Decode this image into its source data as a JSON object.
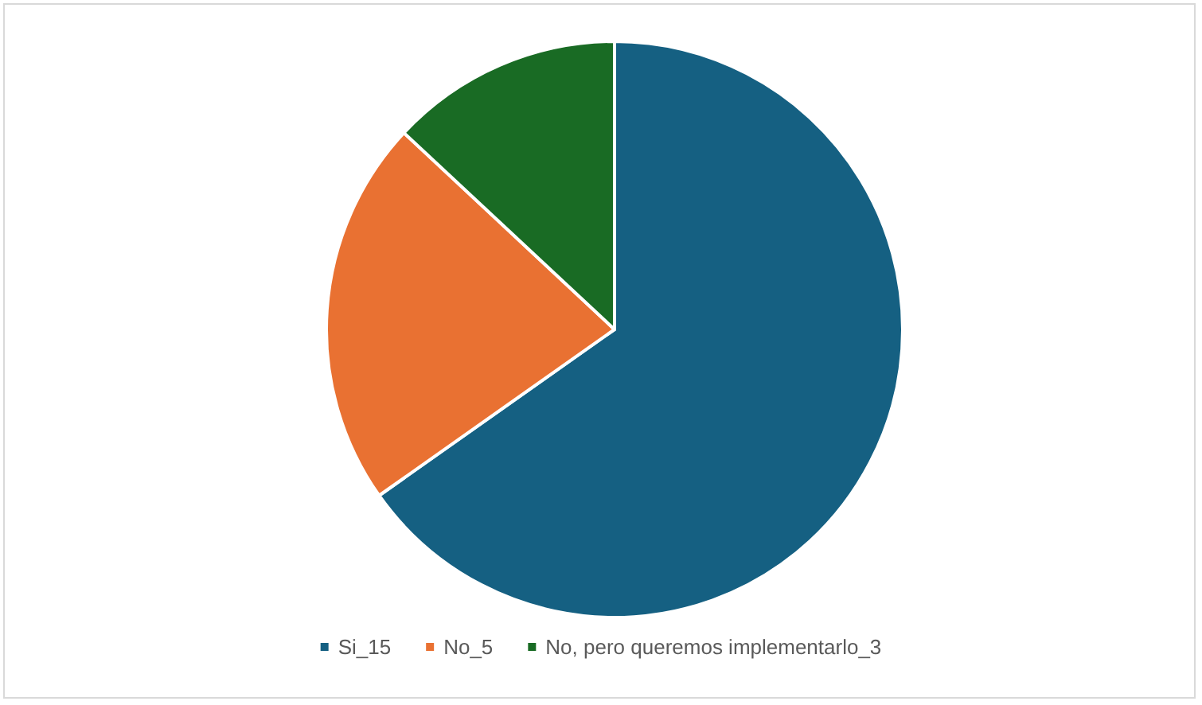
{
  "chart_data": {
    "type": "pie",
    "categories": [
      "Si_15",
      "No_5",
      "No, pero queremos implementarlo_3"
    ],
    "values": [
      15,
      5,
      3
    ],
    "colors": [
      "#156082",
      "#e97132",
      "#196b24"
    ],
    "legend": "bottom"
  }
}
